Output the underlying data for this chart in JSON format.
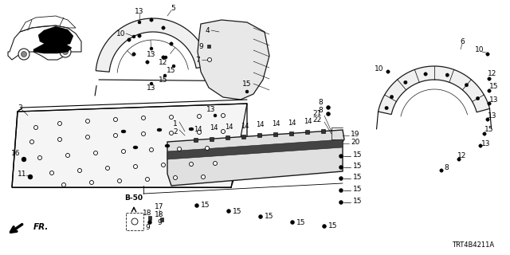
{
  "diagram_code": "TRT4B4211A",
  "background_color": "#ffffff",
  "line_color": "#1a1a1a",
  "fig_width": 6.4,
  "fig_height": 3.2,
  "dpi": 100,
  "fr_label": "FR.",
  "b50_label": "B-50",
  "gray_fill": "#d8d8d8",
  "hatch_color": "#555555"
}
